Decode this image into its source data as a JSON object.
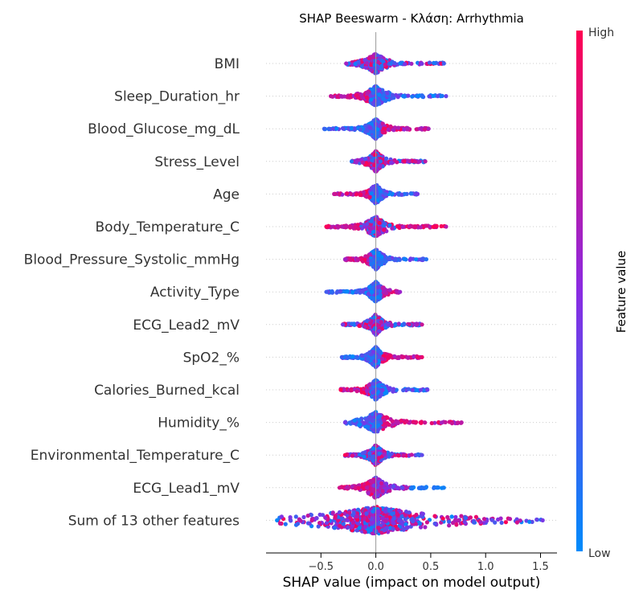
{
  "chart_data": {
    "type": "scatter",
    "subtype": "shap-beeswarm",
    "title": "SHAP Beeswarm - Κλάση: Arrhythmia",
    "xlabel": "SHAP value (impact on model output)",
    "ylabel": "",
    "xlim": [
      -1.0,
      1.65
    ],
    "xticks": [
      -0.5,
      0.0,
      0.5,
      1.0,
      1.5
    ],
    "xtick_labels": [
      "−0.5",
      "0.0",
      "0.5",
      "1.0",
      "1.5"
    ],
    "colorbar": {
      "label": "Feature value",
      "high_label": "High",
      "low_label": "Low",
      "low_color": "#008bfb",
      "mid_color": "#8a2be2",
      "high_color": "#ff0052"
    },
    "grid": false,
    "features": [
      {
        "name": "BMI",
        "min": -0.27,
        "max": 0.62,
        "density": [
          0.5,
          0.4,
          0.3,
          0.25,
          0.2,
          0.15,
          0.12,
          0.1
        ],
        "color_trend": "mixed"
      },
      {
        "name": "Sleep_Duration_hr",
        "min": -0.41,
        "max": 0.64,
        "density": [
          0.55,
          0.4,
          0.3,
          0.25,
          0.2
        ],
        "color_trend": "high_left"
      },
      {
        "name": "Blood_Glucose_mg_dL",
        "min": -0.47,
        "max": 0.48,
        "density": [
          0.45,
          0.35,
          0.28,
          0.2
        ],
        "color_trend": "high_right"
      },
      {
        "name": "Stress_Level",
        "min": -0.22,
        "max": 0.45,
        "density": [
          0.6,
          0.45,
          0.3
        ],
        "color_trend": "mixed"
      },
      {
        "name": "Age",
        "min": -0.38,
        "max": 0.38,
        "density": [
          0.5,
          0.4,
          0.3
        ],
        "color_trend": "high_left"
      },
      {
        "name": "Body_Temperature_C",
        "min": -0.45,
        "max": 0.64,
        "density": [
          0.5,
          0.35,
          0.25
        ],
        "color_trend": "high_both"
      },
      {
        "name": "Blood_Pressure_Systolic_mmHg",
        "min": -0.28,
        "max": 0.46,
        "density": [
          0.55,
          0.4,
          0.3
        ],
        "color_trend": "high_left"
      },
      {
        "name": "Activity_Type",
        "min": -0.45,
        "max": 0.22,
        "density": [
          0.6,
          0.4
        ],
        "color_trend": "high_right"
      },
      {
        "name": "ECG_Lead2_mV",
        "min": -0.3,
        "max": 0.42,
        "density": [
          0.55,
          0.4,
          0.3
        ],
        "color_trend": "mixed"
      },
      {
        "name": "SpO2_%",
        "min": -0.31,
        "max": 0.42,
        "density": [
          0.5,
          0.35,
          0.3
        ],
        "color_trend": "high_right"
      },
      {
        "name": "Calories_Burned_kcal",
        "min": -0.32,
        "max": 0.47,
        "density": [
          0.5,
          0.35,
          0.25
        ],
        "color_trend": "high_left"
      },
      {
        "name": "Humidity_%",
        "min": -0.28,
        "max": 0.78,
        "density": [
          0.55,
          0.4,
          0.25
        ],
        "color_trend": "high_right"
      },
      {
        "name": "Environmental_Temperature_C",
        "min": -0.28,
        "max": 0.42,
        "density": [
          0.55,
          0.4,
          0.3
        ],
        "color_trend": "mixed"
      },
      {
        "name": "ECG_Lead1_mV",
        "min": -0.33,
        "max": 0.62,
        "density": [
          0.5,
          0.4,
          0.3
        ],
        "color_trend": "high_left_low_right"
      },
      {
        "name": "Sum of 13 other features",
        "min": -0.9,
        "max": 1.52,
        "density": [
          1.0,
          0.85,
          0.7,
          0.5,
          0.35
        ],
        "color_trend": "mixed"
      }
    ]
  }
}
